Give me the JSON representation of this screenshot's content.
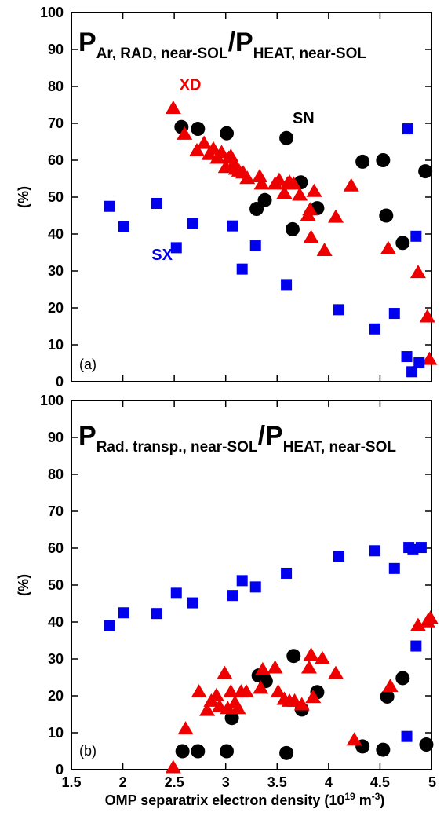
{
  "x_axis_title": {
    "main": "OMP separatrix electron density (10",
    "sup": "19",
    "mid": " m",
    "sup2": "-3",
    "end": ")"
  },
  "colors": {
    "SN": "#000000",
    "XD": "#ee0000",
    "SX": "#0000ee"
  },
  "chart_data": [
    {
      "type": "scatter",
      "panel_tag": "(a)",
      "title": {
        "p1": "P",
        "sub1": "Ar, RAD, near-SOL",
        "slash": "/P",
        "sub2": "HEAT, near-SOL"
      },
      "ylabel": "(%)",
      "xlim": [
        1.5,
        5.0
      ],
      "ylim": [
        0,
        100
      ],
      "xticks": [
        "1.5",
        "2",
        "2.5",
        "3",
        "3.5",
        "4",
        "4.5",
        "5"
      ],
      "yticks": [
        "0",
        "10",
        "20",
        "30",
        "40",
        "50",
        "60",
        "70",
        "80",
        "90",
        "100"
      ],
      "series": [
        {
          "name": "SN",
          "marker": "circle",
          "label_x": 3.65,
          "label_y": 70,
          "x": [
            2.57,
            2.73,
            3.01,
            3.3,
            3.38,
            3.59,
            3.65,
            3.73,
            3.89,
            4.33,
            4.53,
            4.56,
            4.72,
            4.94
          ],
          "y": [
            69,
            68.5,
            67.3,
            46.8,
            49.2,
            66,
            41.3,
            54,
            47,
            59.6,
            60,
            45,
            37.6,
            57
          ]
        },
        {
          "name": "XD",
          "marker": "triangle",
          "label_x": 2.55,
          "label_y": 79,
          "x": [
            2.49,
            2.6,
            2.72,
            2.79,
            2.84,
            2.88,
            2.92,
            2.96,
            3.0,
            3.03,
            3.05,
            3.08,
            3.1,
            3.13,
            3.17,
            3.21,
            3.33,
            3.35,
            3.48,
            3.52,
            3.57,
            3.6,
            3.62,
            3.66,
            3.72,
            3.8,
            3.82,
            3.83,
            3.86,
            3.96,
            4.07,
            4.22,
            4.58,
            4.87,
            4.96,
            4.98
          ],
          "y": [
            74,
            67,
            62.5,
            64.5,
            61.5,
            63,
            60.5,
            62,
            58,
            60.5,
            61,
            59,
            57.5,
            57,
            56.5,
            55,
            55.5,
            53.5,
            53.5,
            54.5,
            51,
            53.5,
            54,
            53.5,
            50.5,
            45,
            46.5,
            39,
            51.5,
            35.5,
            44.5,
            53,
            36,
            29.5,
            17.5,
            6
          ]
        },
        {
          "name": "SX",
          "marker": "square",
          "label_x": 2.28,
          "label_y": 33,
          "x": [
            1.87,
            2.01,
            2.33,
            2.52,
            2.68,
            3.07,
            3.16,
            3.29,
            3.59,
            4.1,
            4.45,
            4.64,
            4.76,
            4.77,
            4.81,
            4.85,
            4.88
          ],
          "y": [
            47.5,
            42,
            48.3,
            36.3,
            42.8,
            42.2,
            30.5,
            36.8,
            26.3,
            19.5,
            14.3,
            18.5,
            6.8,
            68.5,
            2.7,
            39.4,
            5.1
          ]
        }
      ]
    },
    {
      "type": "scatter",
      "panel_tag": "(b)",
      "title": {
        "p1": "P",
        "sub1": "Rad. transp., near-SOL",
        "slash": "/P",
        "sub2": "HEAT, near-SOL"
      },
      "ylabel": "(%)",
      "xlim": [
        1.5,
        5.0
      ],
      "ylim": [
        0,
        100
      ],
      "xticks": [
        "1.5",
        "2",
        "2.5",
        "3",
        "3.5",
        "4",
        "4.5",
        "5"
      ],
      "yticks": [
        "0",
        "10",
        "20",
        "30",
        "40",
        "50",
        "60",
        "70",
        "80",
        "90",
        "100"
      ],
      "series": [
        {
          "name": "SN",
          "marker": "circle",
          "x": [
            2.58,
            2.73,
            3.01,
            3.06,
            3.32,
            3.39,
            3.59,
            3.66,
            3.74,
            3.89,
            4.33,
            4.53,
            4.57,
            4.72,
            4.95
          ],
          "y": [
            5,
            5,
            5,
            14,
            25.5,
            24,
            4.5,
            30.8,
            16.3,
            21,
            6.3,
            5.4,
            19.8,
            24.8,
            6.8
          ]
        },
        {
          "name": "XD",
          "marker": "triangle",
          "x": [
            2.49,
            2.61,
            2.74,
            2.82,
            2.86,
            2.91,
            2.94,
            2.99,
            3.02,
            3.05,
            3.09,
            3.12,
            3.15,
            3.2,
            3.34,
            3.36,
            3.48,
            3.51,
            3.57,
            3.62,
            3.67,
            3.74,
            3.81,
            3.83,
            3.85,
            3.94,
            4.07,
            4.25,
            4.6,
            4.87,
            4.96,
            4.99
          ],
          "y": [
            0.5,
            11,
            21,
            16,
            18.5,
            20,
            17,
            26,
            16.5,
            21,
            18,
            16.5,
            21,
            21,
            22,
            27,
            27.5,
            21,
            19,
            18.5,
            18.5,
            17.5,
            27.5,
            31,
            19.5,
            30,
            26,
            8,
            22.5,
            39,
            40,
            41
          ]
        },
        {
          "name": "SX",
          "marker": "square",
          "x": [
            1.87,
            2.01,
            2.33,
            2.52,
            2.68,
            3.07,
            3.16,
            3.29,
            3.59,
            4.1,
            4.45,
            4.64,
            4.76,
            4.78,
            4.82,
            4.85,
            4.9
          ],
          "y": [
            39,
            42.5,
            42.3,
            47.8,
            45.2,
            47.2,
            51.2,
            49.5,
            53.2,
            57.8,
            59.3,
            54.5,
            9,
            60.2,
            59.6,
            33.5,
            60.2
          ]
        }
      ]
    }
  ]
}
